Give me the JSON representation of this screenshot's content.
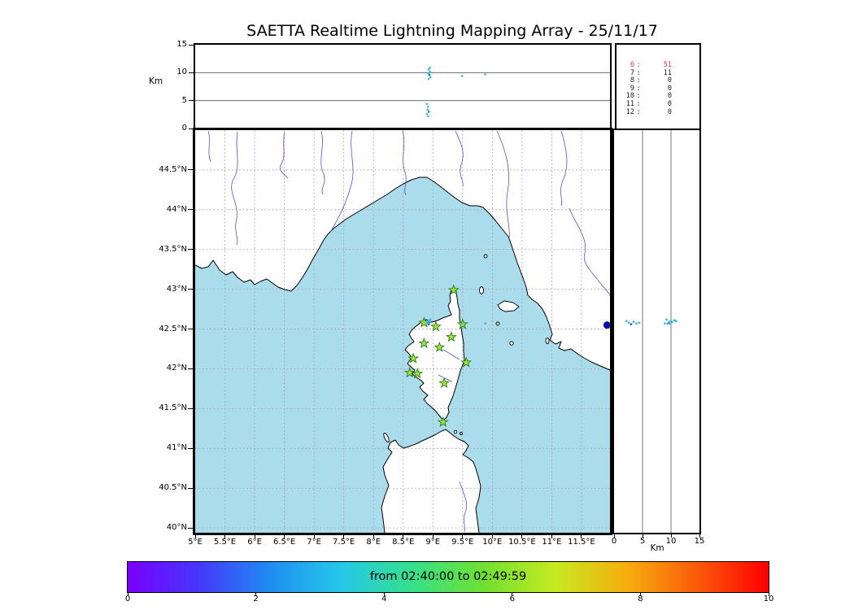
{
  "title": "SAETTA Realtime Lightning Mapping Array - 25/11/17",
  "axis_labels": {
    "top_km": "Km",
    "right_km": "Km"
  },
  "colorbar": {
    "label": "from 02:40:00 to 02:49:59",
    "ticks": [
      "0",
      "2",
      "4",
      "6",
      "8",
      "10"
    ],
    "tick_values": [
      0,
      2,
      4,
      6,
      8,
      10
    ],
    "range": [
      0,
      10
    ],
    "gradient": [
      "#7b00ff",
      "#4438fa",
      "#1f8df2",
      "#25c8e8",
      "#35e08a",
      "#70e030",
      "#c6ea22",
      "#f6ae0e",
      "#fb5a0a",
      "#fe0000"
    ]
  },
  "colors": {
    "sea": "#aadcec",
    "station_fill": "#9fe33b",
    "station_edge": "#2e7d1e",
    "lightning": "#3fb8dc",
    "lightning_dark": "#2a64c8",
    "stat_red": "#f03030",
    "stat_black": "#1a1a1a"
  },
  "chart_data": {
    "type": "scatter",
    "title": "SAETTA Realtime Lightning Mapping Array - 25/11/17",
    "date": "25/11/17",
    "time_window": {
      "from": "02:40:00",
      "to": "02:49:59"
    },
    "axes": {
      "lon_range": [
        5,
        11.98
      ],
      "lat_range": [
        39.94,
        45.0
      ],
      "alt_range_km": [
        0,
        15
      ],
      "lon_ticks": [
        {
          "v": 5,
          "label": "5°E"
        },
        {
          "v": 5.5,
          "label": "5.5°E"
        },
        {
          "v": 6,
          "label": "6°E"
        },
        {
          "v": 6.5,
          "label": "6.5°E"
        },
        {
          "v": 7,
          "label": "7°E"
        },
        {
          "v": 7.5,
          "label": "7.5°E"
        },
        {
          "v": 8,
          "label": "8°E"
        },
        {
          "v": 8.5,
          "label": "8.5°E"
        },
        {
          "v": 9,
          "label": "9°E"
        },
        {
          "v": 9.5,
          "label": "9.5°E"
        },
        {
          "v": 10,
          "label": "10°E"
        },
        {
          "v": 10.5,
          "label": "10.5°E"
        },
        {
          "v": 11,
          "label": "11°E"
        },
        {
          "v": 11.5,
          "label": "11.5°E"
        }
      ],
      "lat_ticks": [
        {
          "v": 44.5,
          "label": "44.5°N"
        },
        {
          "v": 44,
          "label": "44°N"
        },
        {
          "v": 43.5,
          "label": "43.5°N"
        },
        {
          "v": 43,
          "label": "43°N"
        },
        {
          "v": 42.5,
          "label": "42.5°N"
        },
        {
          "v": 42,
          "label": "42°N"
        },
        {
          "v": 41.5,
          "label": "41.5°N"
        },
        {
          "v": 41,
          "label": "41°N"
        },
        {
          "v": 40.5,
          "label": "40.5°N"
        },
        {
          "v": 40,
          "label": "40°N"
        }
      ],
      "alt_ticks_top": [
        {
          "v": 15,
          "label": "15"
        },
        {
          "v": 10,
          "label": "10"
        },
        {
          "v": 5,
          "label": "5"
        },
        {
          "v": 0,
          "label": "0"
        }
      ],
      "alt_ticks_right": [
        {
          "v": 0,
          "label": "0"
        },
        {
          "v": 5,
          "label": "5"
        },
        {
          "v": 10,
          "label": "10"
        },
        {
          "v": 15,
          "label": "15"
        }
      ]
    },
    "hourly_counts": [
      {
        "hour": "6",
        "count": "51",
        "color": "#f03030"
      },
      {
        "hour": "7",
        "count": "11",
        "color": "#1a1a1a"
      },
      {
        "hour": "8",
        "count": "0",
        "color": "#1a1a1a"
      },
      {
        "hour": "9",
        "count": "0",
        "color": "#1a1a1a"
      },
      {
        "hour": "10",
        "count": "0",
        "color": "#1a1a1a"
      },
      {
        "hour": "11",
        "count": "0",
        "color": "#1a1a1a"
      },
      {
        "hour": "12",
        "count": "0",
        "color": "#1a1a1a"
      }
    ],
    "stations": [
      {
        "lon": 9.35,
        "lat": 42.99
      },
      {
        "lon": 8.85,
        "lat": 42.58
      },
      {
        "lon": 9.05,
        "lat": 42.53
      },
      {
        "lon": 9.5,
        "lat": 42.56
      },
      {
        "lon": 9.31,
        "lat": 42.4
      },
      {
        "lon": 8.85,
        "lat": 42.32
      },
      {
        "lon": 9.11,
        "lat": 42.27
      },
      {
        "lon": 8.67,
        "lat": 42.13
      },
      {
        "lon": 9.56,
        "lat": 42.08
      },
      {
        "lon": 8.61,
        "lat": 41.95
      },
      {
        "lon": 8.74,
        "lat": 41.94
      },
      {
        "lon": 9.19,
        "lat": 41.82
      },
      {
        "lon": 9.17,
        "lat": 41.33
      }
    ],
    "lightning_points": [
      {
        "lon": 8.93,
        "lat": 42.61,
        "alt": 10.6
      },
      {
        "lon": 8.95,
        "lat": 42.59,
        "alt": 10.2
      },
      {
        "lon": 8.92,
        "lat": 42.6,
        "alt": 9.9
      },
      {
        "lon": 8.94,
        "lat": 42.58,
        "alt": 9.6,
        "dark": true
      },
      {
        "lon": 8.96,
        "lat": 42.62,
        "alt": 9.2
      },
      {
        "lon": 8.93,
        "lat": 42.57,
        "alt": 8.9
      },
      {
        "lon": 8.95,
        "lat": 42.6,
        "alt": 10.9
      },
      {
        "lon": 8.9,
        "lat": 42.58,
        "alt": 4.4
      },
      {
        "lon": 8.92,
        "lat": 42.57,
        "alt": 3.9
      },
      {
        "lon": 8.91,
        "lat": 42.59,
        "alt": 3.4
      },
      {
        "lon": 8.93,
        "lat": 42.56,
        "alt": 3.0,
        "dark": true
      },
      {
        "lon": 8.9,
        "lat": 42.58,
        "alt": 2.6
      },
      {
        "lon": 8.92,
        "lat": 42.6,
        "alt": 2.2
      },
      {
        "lon": 9.49,
        "lat": 42.57,
        "alt": 9.4
      },
      {
        "lon": 9.88,
        "lat": 42.57,
        "alt": 9.7
      }
    ],
    "map_marker": {
      "lon": 11.93,
      "lat": 42.55,
      "color": "#0a0aaa"
    }
  }
}
